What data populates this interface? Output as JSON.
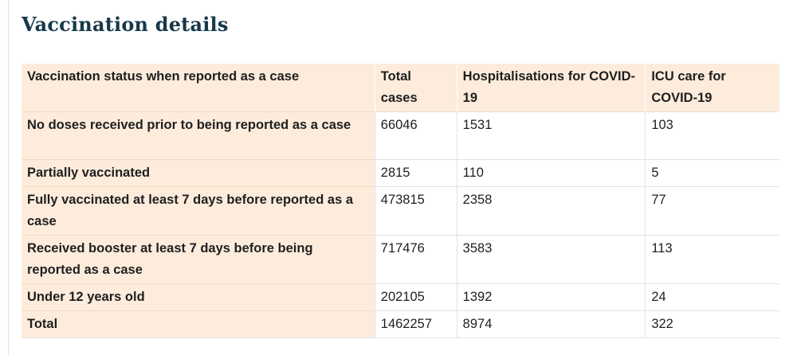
{
  "page": {
    "title": "Vaccination details"
  },
  "table": {
    "headers": [
      "Vaccination status when reported as a case",
      "Total cases",
      "Hospitalisations for COVID-19",
      "ICU care for COVID-19"
    ],
    "rows": [
      {
        "status": "No doses received prior to being reported as a case",
        "total": "66046",
        "hosp": "1531",
        "icu": "103"
      },
      {
        "status": "Partially vaccinated",
        "total": "2815",
        "hosp": "110",
        "icu": "5"
      },
      {
        "status": "Fully vaccinated at least 7 days before reported as a case",
        "total": "473815",
        "hosp": "2358",
        "icu": "77"
      },
      {
        "status": "Received booster at least 7 days before being reported as a case",
        "total": "717476",
        "hosp": "3583",
        "icu": "113"
      },
      {
        "status": "Under 12 years old",
        "total": "202105",
        "hosp": "1392",
        "icu": "24"
      },
      {
        "status": "Total",
        "total": "1462257",
        "hosp": "8974",
        "icu": "322"
      }
    ]
  }
}
